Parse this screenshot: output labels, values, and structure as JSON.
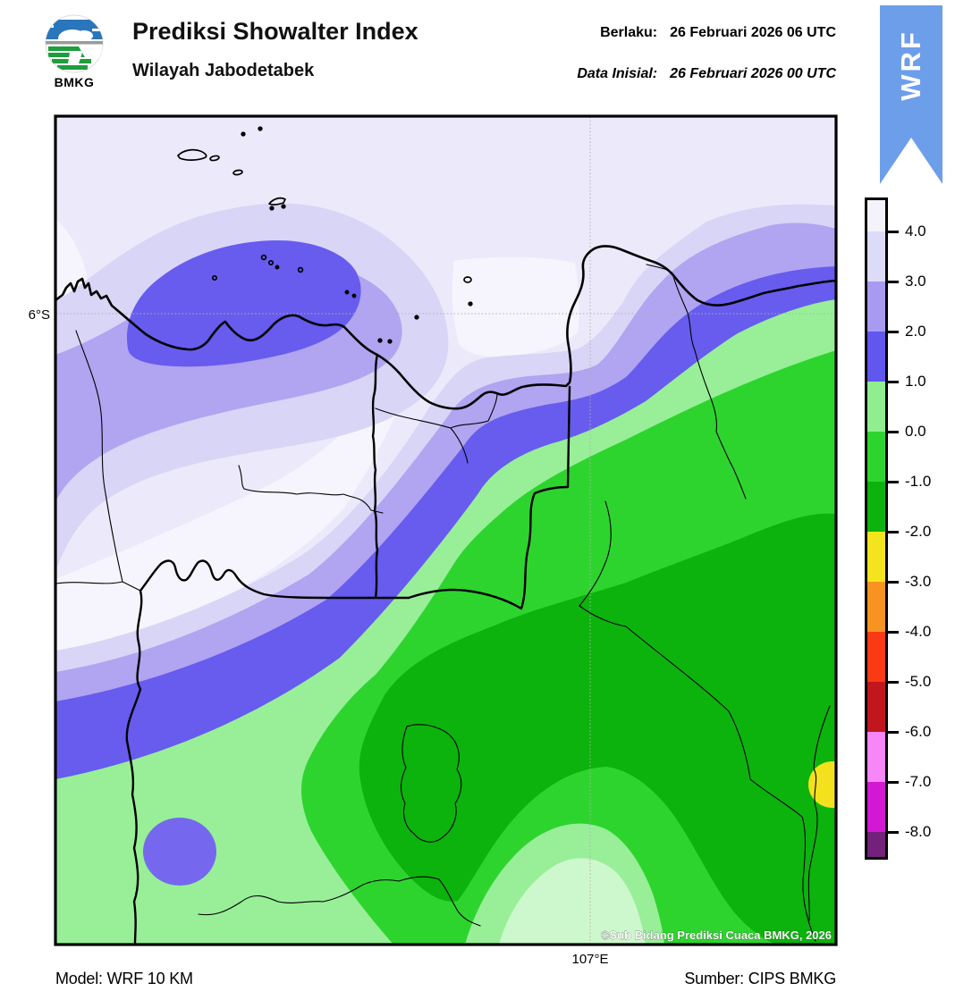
{
  "header": {
    "logo_text": "BMKG",
    "title": "Prediksi Showalter Index",
    "subtitle": "Wilayah Jabodetabek",
    "valid_label": "Berlaku:",
    "valid_value": "26 Februari 2026 06 UTC",
    "init_label": "Data Inisial:",
    "init_value": "26 Februari 2026 00 UTC",
    "ribbon_label": "WRF"
  },
  "map": {
    "lat_tick": "6°S",
    "lon_tick": "107°E",
    "copyright": "©Sub Bidang Prediksi Cuaca BMKG, 2026"
  },
  "colorbar": {
    "tick_labels": [
      "4.0",
      "3.0",
      "2.0",
      "1.0",
      "0.0",
      "-1.0",
      "-2.0",
      "-3.0",
      "-4.0",
      "-5.0",
      "-6.0",
      "-7.0",
      "-8.0"
    ],
    "segment_colors_top_to_bottom": [
      "#f4f2fa",
      "#dcdcf9",
      "#a89af1",
      "#6156ee",
      "#90ee90",
      "#2ed42e",
      "#0cb30c",
      "#f3e41d",
      "#f79421",
      "#fa3a14",
      "#c2161f",
      "#f787f7",
      "#d318d3",
      "#73217a"
    ]
  },
  "footer": {
    "model": "Model: WRF 10 KM",
    "source": "Sumber: CIPS BMKG"
  },
  "colors": {
    "ribbon_blue": "#6d9eea",
    "map_bg": "#eceafa",
    "band_gt4": "#f6f5fd",
    "band_3_4": "#d9d5f6",
    "band_2_3": "#b1a4f0",
    "band_1_2": "#675cee",
    "band_0_1": "#98ef98",
    "band_m1_0": "#2ed42e",
    "band_m2_m1": "#0cb30c",
    "dome_inner": "#cdf8cd",
    "spot_yellow": "#f4e11d",
    "blob_blue": "#7568ef",
    "logo_blue": "#2a76bc",
    "logo_green": "#1e9e3c"
  },
  "chart_data": {
    "type": "heatmap",
    "title": "Prediksi Showalter Index",
    "region": "Wilayah Jabodetabek",
    "valid_time": "26 Februari 2026 06 UTC",
    "initial_time": "26 Februari 2026 00 UTC",
    "legend_levels": [
      4.0,
      3.0,
      2.0,
      1.0,
      0.0,
      -1.0,
      -2.0,
      -3.0,
      -4.0,
      -5.0,
      -6.0,
      -7.0,
      -8.0
    ],
    "x_tick": "107°E",
    "y_tick": "6°S",
    "model": "WRF 10 KM",
    "source": "CIPS BMKG"
  }
}
